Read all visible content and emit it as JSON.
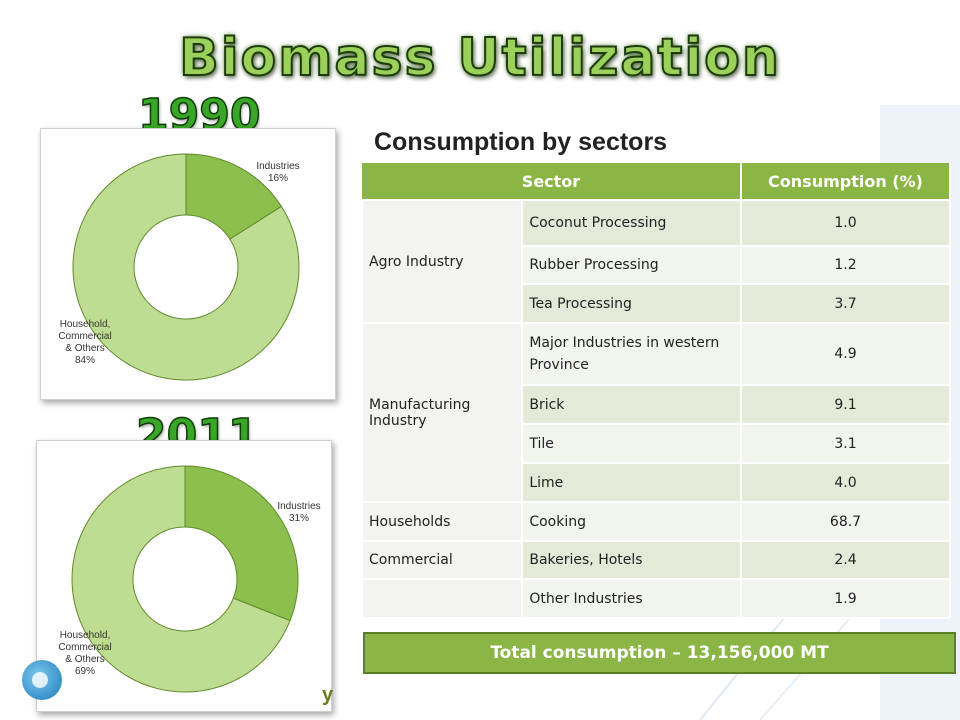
{
  "slide": {
    "title": "Biomass Utilization",
    "subtitle": "Consumption by sectors",
    "total": "Total consumption – 13,156,000 MT",
    "footer_fragment": "y"
  },
  "table": {
    "headers": [
      "Sector",
      "Consumption (%)"
    ],
    "groups": [
      {
        "sector": "Agro Industry",
        "rows": [
          {
            "sub": "Coconut Processing",
            "value": "1.0"
          },
          {
            "sub": "Rubber Processing",
            "value": "1.2"
          },
          {
            "sub": "Tea Processing",
            "value": "3.7"
          }
        ]
      },
      {
        "sector": "Manufacturing Industry",
        "rows": [
          {
            "sub": "Major Industries in western Province",
            "value": "4.9"
          },
          {
            "sub": "Brick",
            "value": "9.1"
          },
          {
            "sub": "Tile",
            "value": "3.1"
          },
          {
            "sub": "Lime",
            "value": "4.0"
          }
        ]
      },
      {
        "sector": "Households",
        "rows": [
          {
            "sub": "Cooking",
            "value": "68.7"
          }
        ]
      },
      {
        "sector": "Commercial",
        "rows": [
          {
            "sub": "Bakeries,  Hotels",
            "value": "2.4"
          }
        ]
      },
      {
        "sector": "",
        "rows": [
          {
            "sub": "Other Industries",
            "value": "1.9"
          }
        ]
      }
    ]
  },
  "chart_data": [
    {
      "type": "pie",
      "year": "1990",
      "slices": [
        {
          "label_lines": [
            "Industries",
            "16%"
          ],
          "value": 16,
          "color": "#8dbf4e"
        },
        {
          "label_lines": [
            "Household,",
            "Commercial",
            "& Others",
            "84%"
          ],
          "value": 84,
          "color": "#bfdc93"
        }
      ]
    },
    {
      "type": "pie",
      "year": "2011",
      "slices": [
        {
          "label_lines": [
            "Industries",
            "31%"
          ],
          "value": 31,
          "color": "#8dbf4e"
        },
        {
          "label_lines": [
            "Household,",
            "Commercial",
            "& Others",
            "69%"
          ],
          "value": 69,
          "color": "#bfdc93"
        }
      ]
    }
  ],
  "colors": {
    "header_green": "#8bb544",
    "title_green": "#9bd05a",
    "year_green": "#39a627"
  }
}
